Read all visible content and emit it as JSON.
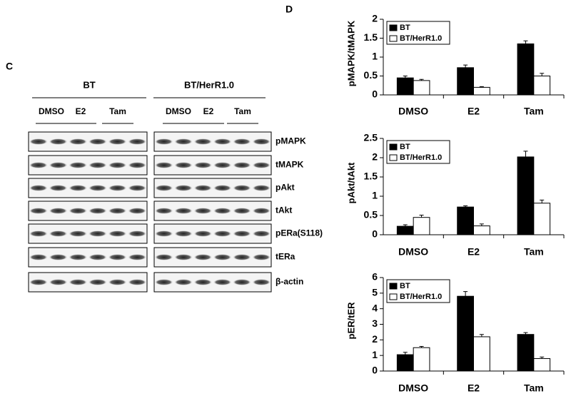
{
  "panel_c": {
    "label": "C",
    "groups": [
      "BT",
      "BT/HerR1.0"
    ],
    "treatments": [
      "DMSO",
      "E2",
      "Tam"
    ],
    "rows": [
      "pMAPK",
      "tMAPK",
      "pAkt",
      "tAkt",
      "pERa(S118)",
      "tERa",
      "β-actin"
    ]
  },
  "panel_d": {
    "label": "D"
  },
  "chart_data": [
    {
      "type": "bar",
      "ylabel": "pMAPK/tMAPK",
      "categories": [
        "DMSO",
        "E2",
        "Tam"
      ],
      "series": [
        {
          "name": "BT",
          "color": "#000000",
          "values": [
            0.45,
            0.72,
            1.35
          ],
          "errors": [
            0.05,
            0.07,
            0.08
          ]
        },
        {
          "name": "BT/HerR1.0",
          "color": "#ffffff",
          "values": [
            0.38,
            0.2,
            0.5
          ],
          "errors": [
            0.03,
            0.02,
            0.07
          ]
        }
      ],
      "ylim": [
        0,
        2
      ],
      "yticks": [
        0,
        0.5,
        1,
        1.5,
        2
      ]
    },
    {
      "type": "bar",
      "ylabel": "pAkt/tAkt",
      "categories": [
        "DMSO",
        "E2",
        "Tam"
      ],
      "series": [
        {
          "name": "BT",
          "color": "#000000",
          "values": [
            0.22,
            0.72,
            2.02
          ],
          "errors": [
            0.04,
            0.03,
            0.15
          ]
        },
        {
          "name": "BT/HerR1.0",
          "color": "#ffffff",
          "values": [
            0.45,
            0.23,
            0.82
          ],
          "errors": [
            0.06,
            0.05,
            0.08
          ]
        }
      ],
      "ylim": [
        0,
        2.5
      ],
      "yticks": [
        0,
        0.5,
        1,
        1.5,
        2,
        2.5
      ]
    },
    {
      "type": "bar",
      "ylabel": "pER/tER",
      "categories": [
        "DMSO",
        "E2",
        "Tam"
      ],
      "series": [
        {
          "name": "BT",
          "color": "#000000",
          "values": [
            1.05,
            4.8,
            2.35
          ],
          "errors": [
            0.15,
            0.3,
            0.12
          ]
        },
        {
          "name": "BT/HerR1.0",
          "color": "#ffffff",
          "values": [
            1.5,
            2.2,
            0.8
          ],
          "errors": [
            0.08,
            0.15,
            0.1
          ]
        }
      ],
      "ylim": [
        0,
        6
      ],
      "yticks": [
        0,
        1,
        2,
        3,
        4,
        5,
        6
      ]
    }
  ]
}
